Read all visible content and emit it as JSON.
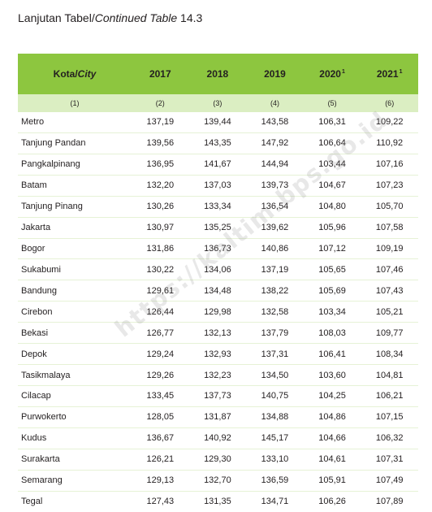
{
  "caption": {
    "prefix": "Lanjutan Tabel/",
    "italic": "Continued Table",
    "suffix": " 14.3"
  },
  "table": {
    "header": {
      "city_label": "Kota/",
      "city_label_italic": "City",
      "years": [
        {
          "year": "2017",
          "sup": ""
        },
        {
          "year": "2018",
          "sup": ""
        },
        {
          "year": "2019",
          "sup": ""
        },
        {
          "year": "2020",
          "sup": "1"
        },
        {
          "year": "2021",
          "sup": "1"
        }
      ],
      "column_numbers": [
        "(1)",
        "(2)",
        "(3)",
        "(4)",
        "(5)",
        "(6)"
      ]
    },
    "rows": [
      {
        "city": "Metro",
        "values": [
          "137,19",
          "139,44",
          "143,58",
          "106,31",
          "109,22"
        ]
      },
      {
        "city": "Tanjung Pandan",
        "values": [
          "139,56",
          "143,35",
          "147,92",
          "106,64",
          "110,92"
        ]
      },
      {
        "city": "Pangkalpinang",
        "values": [
          "136,95",
          "141,67",
          "144,94",
          "103,44",
          "107,16"
        ]
      },
      {
        "city": "Batam",
        "values": [
          "132,20",
          "137,03",
          "139,73",
          "104,67",
          "107,23"
        ]
      },
      {
        "city": "Tanjung Pinang",
        "values": [
          "130,26",
          "133,34",
          "136,54",
          "104,80",
          "105,70"
        ]
      },
      {
        "city": "Jakarta",
        "values": [
          "130,97",
          "135,25",
          "139,62",
          "105,96",
          "107,58"
        ]
      },
      {
        "city": "Bogor",
        "values": [
          "131,86",
          "136,73",
          "140,86",
          "107,12",
          "109,19"
        ]
      },
      {
        "city": "Sukabumi",
        "values": [
          "130,22",
          "134,06",
          "137,19",
          "105,65",
          "107,46"
        ]
      },
      {
        "city": "Bandung",
        "values": [
          "129,61",
          "134,48",
          "138,22",
          "105,69",
          "107,43"
        ]
      },
      {
        "city": "Cirebon",
        "values": [
          "126,44",
          "129,98",
          "132,58",
          "103,34",
          "105,21"
        ]
      },
      {
        "city": "Bekasi",
        "values": [
          "126,77",
          "132,13",
          "137,79",
          "108,03",
          "109,77"
        ]
      },
      {
        "city": "Depok",
        "values": [
          "129,24",
          "132,93",
          "137,31",
          "106,41",
          "108,34"
        ]
      },
      {
        "city": "Tasikmalaya",
        "values": [
          "129,26",
          "132,23",
          "134,50",
          "103,60",
          "104,81"
        ]
      },
      {
        "city": "Cilacap",
        "values": [
          "133,45",
          "137,73",
          "140,75",
          "104,25",
          "106,21"
        ]
      },
      {
        "city": "Purwokerto",
        "values": [
          "128,05",
          "131,87",
          "134,88",
          "104,86",
          "107,15"
        ]
      },
      {
        "city": "Kudus",
        "values": [
          "136,67",
          "140,92",
          "145,17",
          "104,66",
          "106,32"
        ]
      },
      {
        "city": "Surakarta",
        "values": [
          "126,21",
          "129,30",
          "133,10",
          "104,61",
          "107,31"
        ]
      },
      {
        "city": "Semarang",
        "values": [
          "129,13",
          "132,70",
          "136,59",
          "105,91",
          "107,49"
        ]
      },
      {
        "city": "Tegal",
        "values": [
          "127,43",
          "131,35",
          "134,71",
          "106,26",
          "107,89"
        ]
      }
    ]
  },
  "watermark": "https://kaltim.bps.go.id"
}
